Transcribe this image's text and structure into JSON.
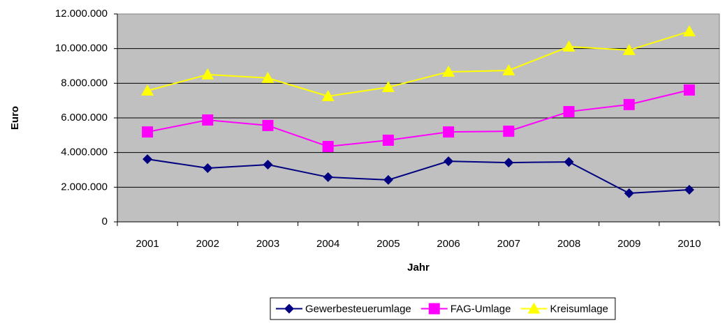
{
  "chart_data": {
    "type": "line",
    "x_label": "Jahr",
    "y_label": "Euro",
    "categories": [
      "2001",
      "2002",
      "2003",
      "2004",
      "2005",
      "2006",
      "2007",
      "2008",
      "2009",
      "2010"
    ],
    "series": [
      {
        "name": "Gewerbesteuerumlage",
        "color": "#000080",
        "marker": "diamond",
        "values": [
          3620000,
          3100000,
          3300000,
          2580000,
          2420000,
          3500000,
          3420000,
          3460000,
          1650000,
          1850000
        ]
      },
      {
        "name": "FAG-Umlage",
        "color": "#ff00ff",
        "marker": "square",
        "values": [
          5190000,
          5880000,
          5560000,
          4350000,
          4710000,
          5190000,
          5230000,
          6360000,
          6770000,
          7610000
        ]
      },
      {
        "name": "Kreisumlage",
        "color": "#ffff00",
        "marker": "triangle",
        "values": [
          7570000,
          8500000,
          8300000,
          7250000,
          7770000,
          8660000,
          8740000,
          10110000,
          9910000,
          10990000
        ]
      }
    ],
    "ylim": [
      0,
      12000000
    ],
    "yticks": [
      0,
      {
        "value": 2000000,
        "label": "2.000.000"
      },
      {
        "value": 4000000,
        "label": "4.000.000"
      },
      {
        "value": 6000000,
        "label": "6.000.000"
      },
      {
        "value": 8000000,
        "label": "8.000.000"
      },
      {
        "value": 10000000,
        "label": "10.000.000"
      },
      {
        "value": 12000000,
        "label": "12.000.000"
      }
    ],
    "grid": true,
    "plot_background": "#c0c0c0",
    "legend": "bottom"
  }
}
